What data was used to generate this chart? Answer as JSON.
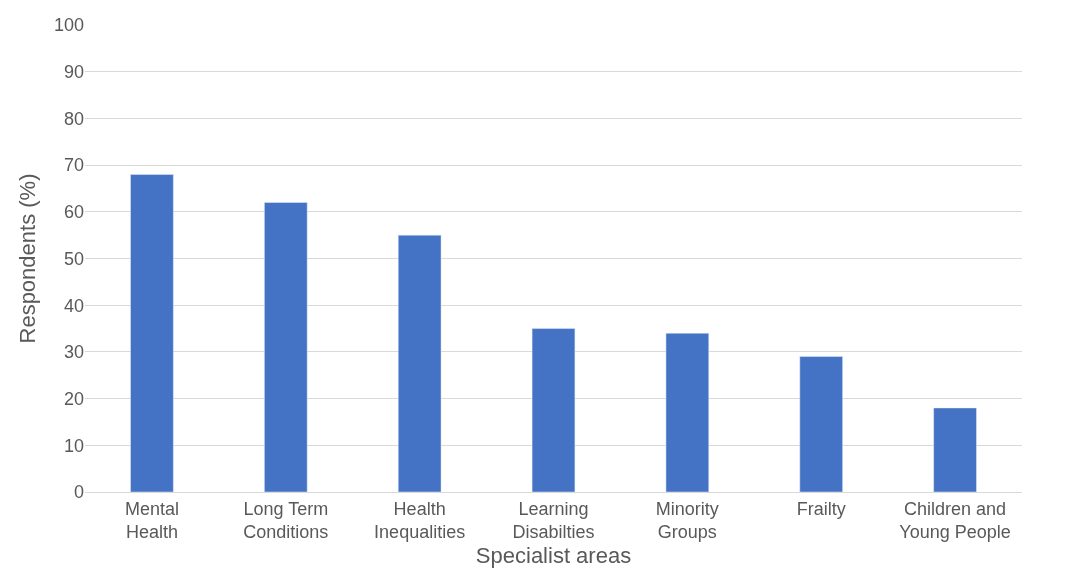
{
  "chart_data": {
    "type": "bar",
    "xlabel": "Specialist areas",
    "ylabel": "Respondents (%)",
    "categories": [
      "Mental Health",
      "Long Term Conditions",
      "Health Inequalities",
      "Learning Disabilties",
      "Minority Groups",
      "Frailty",
      "Children and Young People"
    ],
    "values": [
      68,
      62,
      55,
      35,
      34,
      29,
      18
    ],
    "color": "#4472c4",
    "ylim": [
      0,
      100
    ],
    "yticks": [
      0,
      10,
      20,
      30,
      40,
      50,
      60,
      70,
      80,
      90,
      100
    ],
    "grid": "y"
  }
}
